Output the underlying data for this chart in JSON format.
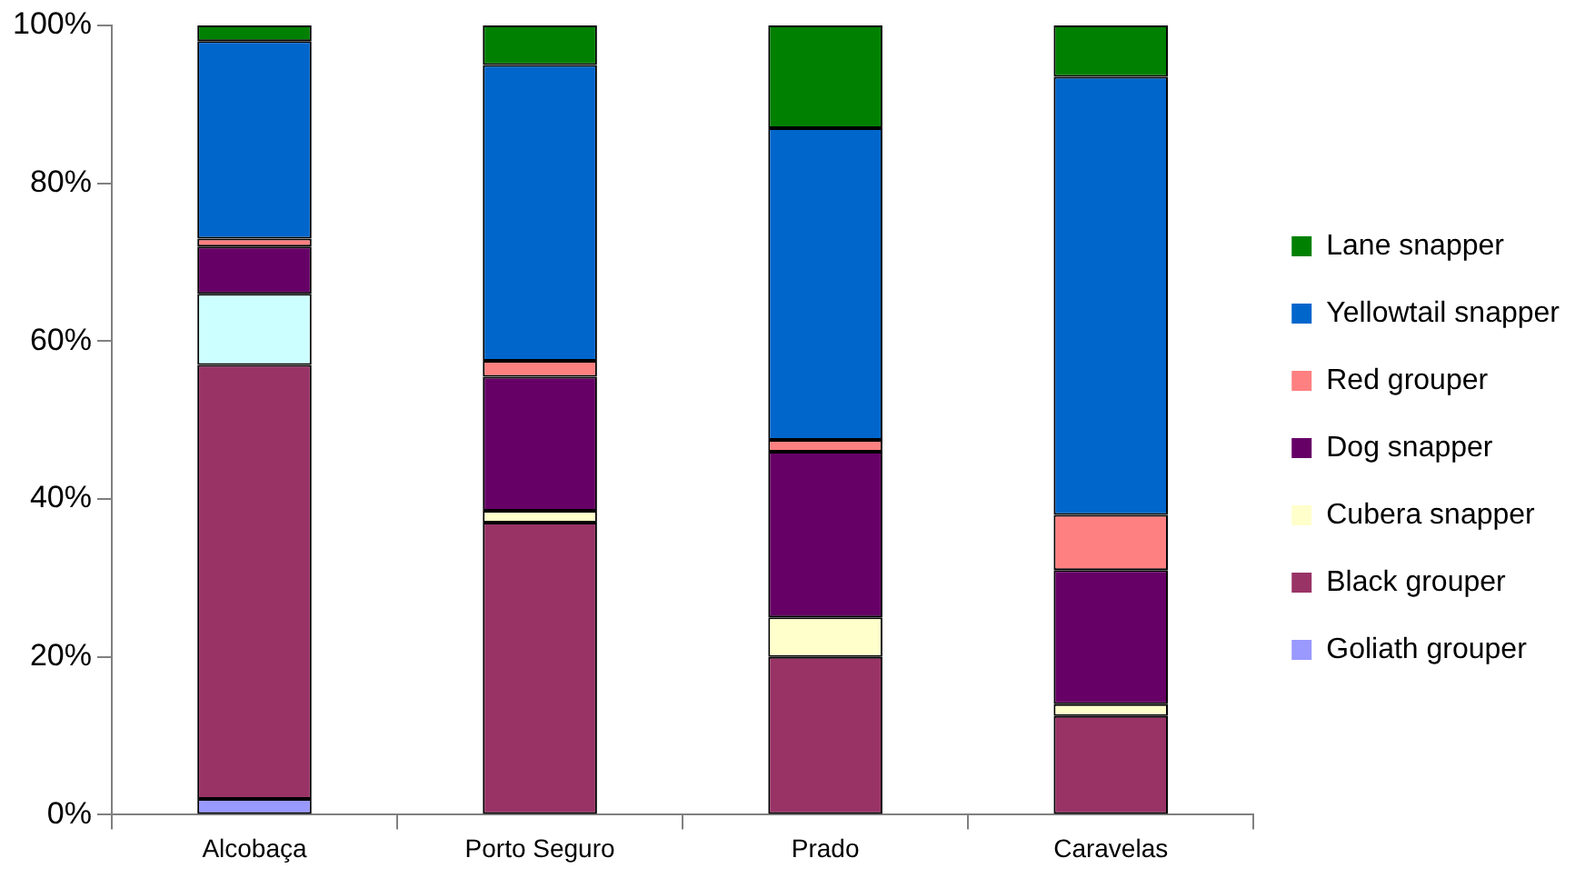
{
  "chart_data": {
    "type": "bar",
    "stacked": true,
    "categories": [
      "Alcobaça",
      "Porto Seguro",
      "Prado",
      "Caravelas"
    ],
    "series": [
      {
        "name": "Goliath grouper",
        "color": "#9999ff",
        "values": [
          2,
          null,
          null,
          null
        ]
      },
      {
        "name": "Black grouper",
        "color": "#993366",
        "values": [
          55,
          37,
          20,
          12.5
        ]
      },
      {
        "name": "Cubera snapper",
        "color": "#ffffcc",
        "values": [
          null,
          1.5,
          5,
          1.5
        ]
      },
      {
        "color": "#ccffff",
        "values": [
          9,
          null,
          null,
          null
        ]
      },
      {
        "name": "Dog snapper",
        "color": "#660066",
        "values": [
          6,
          17,
          21,
          17
        ]
      },
      {
        "name": "Red grouper",
        "color": "#ff8080",
        "values": [
          1,
          2,
          1.5,
          7
        ]
      },
      {
        "name": "Yellowtail snapper",
        "color": "#0066cc",
        "values": [
          25,
          37.5,
          39.5,
          55.5
        ]
      },
      {
        "name": "Lane snapper",
        "color": "#008000",
        "values": [
          2,
          5,
          13,
          6.5
        ]
      }
    ],
    "ylim": [
      0,
      100
    ],
    "yticks": [
      {
        "value": 0,
        "label": "0%"
      },
      {
        "value": 20,
        "label": "20%"
      },
      {
        "value": 40,
        "label": "40%"
      },
      {
        "value": 60,
        "label": "60%"
      },
      {
        "value": 80,
        "label": "80%"
      },
      {
        "value": 100,
        "label": "100%"
      }
    ],
    "grid": false,
    "legend": "right"
  }
}
